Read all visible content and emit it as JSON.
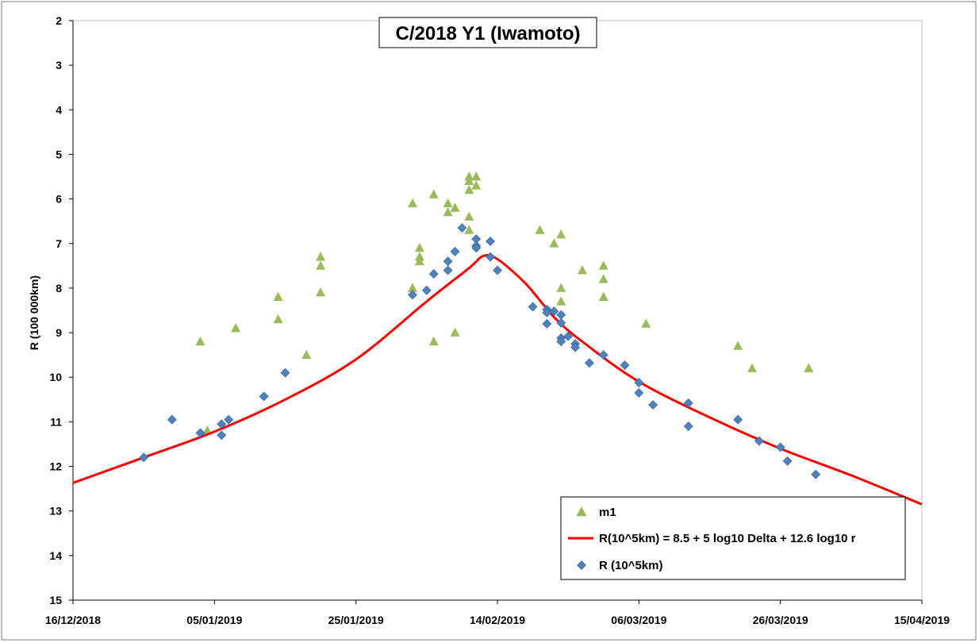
{
  "chart_data": {
    "type": "scatter",
    "title": "C/2018 Y1 (Iwamoto)",
    "xlabel": "",
    "ylabel": "R (100 000km)",
    "y_reversed": true,
    "xlim": [
      "2018-12-16",
      "2019-04-15"
    ],
    "ylim": [
      2,
      15
    ],
    "x_ticks": [
      "16/12/2018",
      "05/01/2019",
      "25/01/2019",
      "14/02/2019",
      "06/03/2019",
      "26/03/2019",
      "15/04/2019"
    ],
    "y_ticks": [
      2,
      3,
      4,
      5,
      6,
      7,
      8,
      9,
      10,
      11,
      12,
      13,
      14,
      15
    ],
    "grid": false,
    "legend_position": "bottom-right",
    "colors": {
      "m1": "#9BBB59",
      "fit": "#FF0000",
      "R": "#4F81BD"
    },
    "series": [
      {
        "name": "m1",
        "marker": "triangle",
        "points": [
          [
            "2019-01-03",
            9.2
          ],
          [
            "2019-01-04",
            11.2
          ],
          [
            "2019-01-08",
            8.9
          ],
          [
            "2019-01-14",
            8.2
          ],
          [
            "2019-01-14",
            8.7
          ],
          [
            "2019-01-18",
            9.5
          ],
          [
            "2019-01-20",
            7.3
          ],
          [
            "2019-01-20",
            7.5
          ],
          [
            "2019-01-20",
            8.1
          ],
          [
            "2019-02-02",
            6.1
          ],
          [
            "2019-02-02",
            8.0
          ],
          [
            "2019-02-03",
            7.1
          ],
          [
            "2019-02-03",
            7.3
          ],
          [
            "2019-02-03",
            7.4
          ],
          [
            "2019-02-05",
            5.9
          ],
          [
            "2019-02-05",
            9.2
          ],
          [
            "2019-02-07",
            6.1
          ],
          [
            "2019-02-07",
            6.3
          ],
          [
            "2019-02-08",
            6.2
          ],
          [
            "2019-02-08",
            9.0
          ],
          [
            "2019-02-10",
            5.5
          ],
          [
            "2019-02-10",
            5.6
          ],
          [
            "2019-02-10",
            5.8
          ],
          [
            "2019-02-10",
            6.4
          ],
          [
            "2019-02-10",
            6.7
          ],
          [
            "2019-02-11",
            5.5
          ],
          [
            "2019-02-11",
            5.7
          ],
          [
            "2019-02-20",
            6.7
          ],
          [
            "2019-02-22",
            7.0
          ],
          [
            "2019-02-23",
            6.8
          ],
          [
            "2019-02-23",
            8.0
          ],
          [
            "2019-02-23",
            8.3
          ],
          [
            "2019-02-26",
            7.6
          ],
          [
            "2019-02-29",
            7.5
          ],
          [
            "2019-02-29",
            7.8
          ],
          [
            "2019-02-29",
            8.2
          ],
          [
            "2019-03-07",
            8.8
          ],
          [
            "2019-03-20",
            9.3
          ],
          [
            "2019-03-22",
            9.8
          ],
          [
            "2019-03-30",
            9.8
          ]
        ]
      },
      {
        "name": "R(10^5km) = 8.5 + 5 log10 Delta + 12.6 log10 r",
        "marker": "line",
        "points": [
          [
            "2018-12-16",
            12.37
          ],
          [
            "2018-12-26",
            11.8
          ],
          [
            "2019-01-05",
            11.22
          ],
          [
            "2019-01-15",
            10.5
          ],
          [
            "2019-01-25",
            9.6
          ],
          [
            "2019-02-04",
            8.3
          ],
          [
            "2019-02-10",
            7.55
          ],
          [
            "2019-02-12",
            7.28
          ],
          [
            "2019-02-14",
            7.35
          ],
          [
            "2019-02-18",
            7.9
          ],
          [
            "2019-02-22",
            8.65
          ],
          [
            "2019-02-26",
            9.2
          ],
          [
            "2019-03-06",
            10.1
          ],
          [
            "2019-03-16",
            10.9
          ],
          [
            "2019-03-26",
            11.6
          ],
          [
            "2019-04-05",
            12.2
          ],
          [
            "2019-04-15",
            12.85
          ]
        ]
      },
      {
        "name": "R (10^5km)",
        "marker": "diamond",
        "points": [
          [
            "2018-12-26",
            11.8
          ],
          [
            "2018-12-30",
            10.95
          ],
          [
            "2019-01-03",
            11.25
          ],
          [
            "2019-01-06",
            11.05
          ],
          [
            "2019-01-06",
            11.3
          ],
          [
            "2019-01-07",
            10.95
          ],
          [
            "2019-01-12",
            10.43
          ],
          [
            "2019-01-15",
            9.9
          ],
          [
            "2019-02-02",
            8.15
          ],
          [
            "2019-02-04",
            8.05
          ],
          [
            "2019-02-05",
            7.68
          ],
          [
            "2019-02-07",
            7.4
          ],
          [
            "2019-02-07",
            7.6
          ],
          [
            "2019-02-08",
            7.18
          ],
          [
            "2019-02-09",
            6.65
          ],
          [
            "2019-02-11",
            6.9
          ],
          [
            "2019-02-11",
            7.05
          ],
          [
            "2019-02-11",
            7.1
          ],
          [
            "2019-02-13",
            6.95
          ],
          [
            "2019-02-13",
            7.3
          ],
          [
            "2019-02-14",
            7.6
          ],
          [
            "2019-02-19",
            8.42
          ],
          [
            "2019-02-21",
            8.48
          ],
          [
            "2019-02-21",
            8.55
          ],
          [
            "2019-02-21",
            8.8
          ],
          [
            "2019-02-22",
            8.52
          ],
          [
            "2019-02-23",
            8.6
          ],
          [
            "2019-02-23",
            8.78
          ],
          [
            "2019-02-23",
            9.12
          ],
          [
            "2019-02-23",
            9.2
          ],
          [
            "2019-02-24",
            9.08
          ],
          [
            "2019-02-25",
            9.25
          ],
          [
            "2019-02-25",
            9.33
          ],
          [
            "2019-02-27",
            9.68
          ],
          [
            "2019-02-29",
            9.5
          ],
          [
            "2019-03-04",
            9.73
          ],
          [
            "2019-03-06",
            10.12
          ],
          [
            "2019-03-06",
            10.35
          ],
          [
            "2019-03-08",
            10.62
          ],
          [
            "2019-03-13",
            10.58
          ],
          [
            "2019-03-13",
            11.1
          ],
          [
            "2019-03-20",
            10.95
          ],
          [
            "2019-03-23",
            11.43
          ],
          [
            "2019-03-26",
            11.57
          ],
          [
            "2019-03-27",
            11.88
          ],
          [
            "2019-03-31",
            12.18
          ]
        ]
      }
    ]
  }
}
